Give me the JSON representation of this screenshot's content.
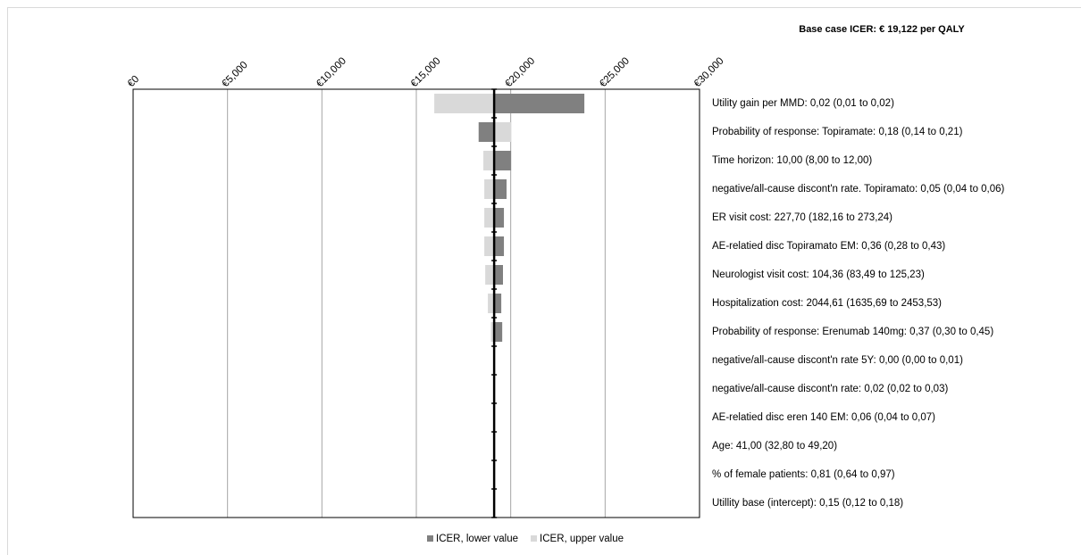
{
  "chart_data": {
    "type": "tornado",
    "title": "Base case ICER: € 19,122 per QALY",
    "base_case": 19122,
    "categories": [
      "Utility gain per MMD: 0,02 (0,01 to 0,02)",
      "Probability of response: Topiramate: 0,18 (0,14 to 0,21)",
      "Time horizon: 10,00 (8,00 to 12,00)",
      "negative/all-cause discont'n rate. Topiramato: 0,05 (0,04 to 0,06)",
      "ER visit cost: 227,70 (182,16 to 273,24)",
      "AE-relatied disc Topiramato EM: 0,36 (0,28 to 0,43)",
      "Neurologist visit cost: 104,36 (83,49 to 125,23)",
      "Hospitalization cost: 2044,61 (1635,69 to 2453,53)",
      "Probability of response: Erenumab 140mg: 0,37 (0,30 to 0,45)",
      "negative/all-cause discont'n rate 5Y: 0,00 (0,00 to 0,01)",
      "negative/all-cause discont'n rate: 0,02 (0,02 to 0,03)",
      "AE-relatied disc eren 140 EM: 0,06 (0,04 to 0,07)",
      "Age: 41,00 (32,80 to 49,20)",
      "% of female patients: 0,81 (0,64 to 0,97)",
      "Utillity base (intercept): 0,15 (0,12 to 0,18)"
    ],
    "series": [
      {
        "name": "ICER, lower value",
        "color": "#808080",
        "values": [
          23900,
          18300,
          20020,
          19780,
          19640,
          19640,
          19590,
          19500,
          19550,
          19150,
          19150,
          19140,
          19140,
          19140,
          19140
        ]
      },
      {
        "name": "ICER, upper value",
        "color": "#d9d9d9",
        "values": [
          15950,
          20020,
          18550,
          18600,
          18600,
          18600,
          18650,
          18790,
          18950,
          19100,
          19100,
          19110,
          19110,
          19110,
          19110
        ]
      }
    ],
    "xlim": [
      0,
      30000
    ],
    "xticks": [
      {
        "value": 0,
        "label": "€0"
      },
      {
        "value": 5000,
        "label": "€5,000"
      },
      {
        "value": 10000,
        "label": "€10,000"
      },
      {
        "value": 15000,
        "label": "€15,000"
      },
      {
        "value": 20000,
        "label": "€20,000"
      },
      {
        "value": 25000,
        "label": "€25,000"
      },
      {
        "value": 30000,
        "label": "€30,000"
      }
    ],
    "grid": true,
    "legend": "bottom"
  }
}
